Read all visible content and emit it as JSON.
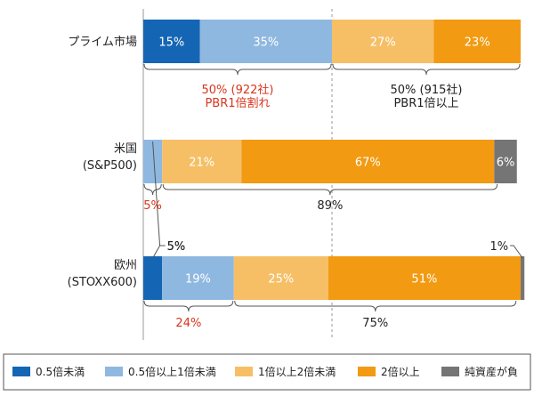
{
  "chart_data": {
    "type": "bar",
    "orientation": "horizontal",
    "stacked": true,
    "xlim": [
      0,
      100
    ],
    "categories": [
      {
        "label_lines": [
          "プライム市場"
        ]
      },
      {
        "label_lines": [
          "米国",
          "(S&P500)"
        ]
      },
      {
        "label_lines": [
          "欧州",
          "(STOXX600)"
        ]
      }
    ],
    "series": [
      {
        "name": "0.5倍未満",
        "color": "#1565b5",
        "values": [
          15,
          0,
          5
        ]
      },
      {
        "name": "0.5倍以上1倍未満",
        "color": "#8fb8e0",
        "values": [
          35,
          5,
          19
        ]
      },
      {
        "name": "1倍以上2倍未満",
        "color": "#f6bf66",
        "values": [
          27,
          21,
          25
        ]
      },
      {
        "name": "2倍以上",
        "color": "#f29a12",
        "values": [
          23,
          67,
          51
        ]
      },
      {
        "name": "純資産が負",
        "color": "#757575",
        "values": [
          0,
          6,
          1
        ]
      }
    ],
    "bar_labels": [
      [
        "15%",
        "35%",
        "27%",
        "23%",
        ""
      ],
      [
        "",
        "",
        "21%",
        "67%",
        "6%"
      ],
      [
        "",
        "19%",
        "25%",
        "51%",
        ""
      ]
    ],
    "callouts": [
      {
        "row": 1,
        "series": 1,
        "text": "5%"
      },
      {
        "row": 2,
        "series": 0,
        "text": "5%"
      },
      {
        "row": 2,
        "series": 4,
        "text": "1%"
      }
    ],
    "braces": [
      {
        "row": 0,
        "from": 0,
        "to": 50,
        "lines": [
          "50% (922社)",
          "PBR1倍割れ"
        ],
        "color": "#d9341c"
      },
      {
        "row": 0,
        "from": 50,
        "to": 100,
        "lines": [
          "50% (915社)",
          "PBR1倍以上"
        ],
        "color": "#222222"
      },
      {
        "row": 1,
        "from": 0,
        "to": 5,
        "lines": [
          "5%"
        ],
        "color": "#d9341c"
      },
      {
        "row": 1,
        "from": 5,
        "to": 94,
        "lines": [
          "89%"
        ],
        "color": "#222222"
      },
      {
        "row": 2,
        "from": 0,
        "to": 24,
        "lines": [
          "24%"
        ],
        "color": "#d9341c"
      },
      {
        "row": 2,
        "from": 24,
        "to": 99,
        "lines": [
          "75%"
        ],
        "color": "#222222"
      }
    ],
    "dashed_reference_line_at": 50,
    "legend": {
      "position": "bottom"
    }
  }
}
